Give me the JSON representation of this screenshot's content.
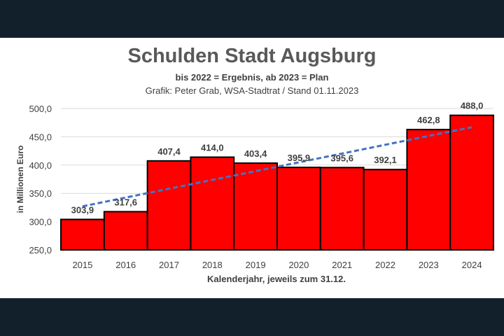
{
  "chart_data": {
    "type": "bar",
    "title": "Schulden Stadt Augsburg",
    "subtitle": "bis 2022 = Ergebnis, ab 2023 = Plan",
    "credit": "Grafik: Peter Grab, WSA-Stadtrat / Stand 01.11.2023",
    "xlabel": "Kalenderjahr, jeweils zum 31.12.",
    "ylabel": "in Millionen Euro",
    "categories": [
      "2015",
      "2016",
      "2017",
      "2018",
      "2019",
      "2020",
      "2021",
      "2022",
      "2023",
      "2024"
    ],
    "values": [
      303.9,
      317.6,
      407.4,
      414.0,
      403.4,
      395.9,
      395.6,
      392.1,
      462.8,
      488.0
    ],
    "value_labels": [
      "303,9",
      "317,6",
      "407,4",
      "414,0",
      "403,4",
      "395,9",
      "395,6",
      "392,1",
      "462,8",
      "488,0"
    ],
    "ylim": [
      250,
      500
    ],
    "yticks": [
      250,
      300,
      350,
      400,
      450,
      500
    ],
    "ytick_labels": [
      "250,0",
      "300,0",
      "350,0",
      "400,0",
      "450,0",
      "500,0"
    ],
    "trendline": {
      "style": "dashed",
      "type": "linear",
      "start": 327,
      "end": 467
    },
    "grid": true,
    "colors": {
      "bar": "#ff0000",
      "bar_edge": "#000000",
      "trend": "#4472c4",
      "grid": "#d9d9d9"
    }
  }
}
